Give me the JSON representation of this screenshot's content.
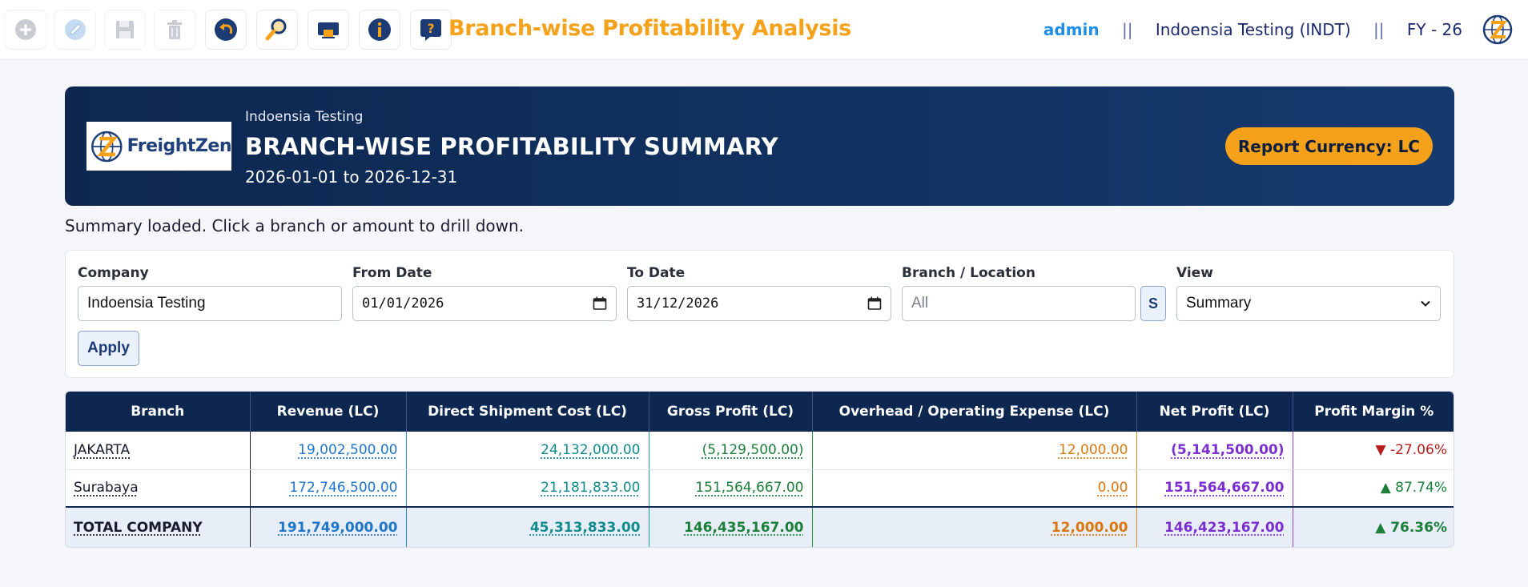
{
  "toolbar": {
    "buttons": [
      {
        "name": "add-button",
        "icon": "plus-circle-icon",
        "enabled": false
      },
      {
        "name": "edit-button",
        "icon": "pencil-icon",
        "enabled": false
      },
      {
        "name": "save-button",
        "icon": "floppy-disk-icon",
        "enabled": false
      },
      {
        "name": "delete-button",
        "icon": "trash-icon",
        "enabled": false
      },
      {
        "name": "back-button",
        "icon": "undo-arrow-icon",
        "enabled": true
      },
      {
        "name": "search-button",
        "icon": "magnifier-icon",
        "enabled": true
      },
      {
        "name": "print-button",
        "icon": "printer-icon",
        "enabled": true
      },
      {
        "name": "info-button",
        "icon": "info-icon",
        "enabled": true
      },
      {
        "name": "help-button",
        "icon": "help-question-icon",
        "enabled": true
      }
    ],
    "app_title": "Branch-wise Profitability Analysis",
    "user": "admin",
    "separator": "||",
    "company": "Indoensia Testing (INDT)",
    "fiscal_year": "FY - 26"
  },
  "banner": {
    "logo_text_a": "Freight",
    "logo_text_b": "Zen",
    "company_name": "Indoensia Testing",
    "report_title": "BRANCH-WISE PROFITABILITY SUMMARY",
    "date_range": "2026-01-01 to 2026-12-31",
    "currency_badge": "Report Currency: LC"
  },
  "status_message": "Summary loaded. Click a branch or amount to drill down.",
  "filters": {
    "company_label": "Company",
    "company_value": "Indoensia Testing",
    "from_label": "From Date",
    "from_value": "01/01/2026",
    "to_label": "To Date",
    "to_value": "31/12/2026",
    "branch_label": "Branch / Location",
    "branch_placeholder": "All",
    "s_button": "S",
    "view_label": "View",
    "view_value": "Summary",
    "apply_label": "Apply"
  },
  "table": {
    "headers": [
      "Branch",
      "Revenue (LC)",
      "Direct Shipment Cost (LC)",
      "Gross Profit (LC)",
      "Overhead / Operating Expense (LC)",
      "Net Profit (LC)",
      "Profit Margin %"
    ],
    "rows": [
      {
        "branch": "JAKARTA",
        "revenue": "19,002,500.00",
        "dsc": "24,132,000.00",
        "gross": "(5,129,500.00)",
        "overhead": "12,000.00",
        "net": "(5,141,500.00)",
        "margin": "-27.06%",
        "margin_dir": "down"
      },
      {
        "branch": "Surabaya",
        "revenue": "172,746,500.00",
        "dsc": "21,181,833.00",
        "gross": "151,564,667.00",
        "overhead": "0.00",
        "net": "151,564,667.00",
        "margin": "87.74%",
        "margin_dir": "up"
      }
    ],
    "total": {
      "branch": "TOTAL COMPANY",
      "revenue": "191,749,000.00",
      "dsc": "45,313,833.00",
      "gross": "146,435,167.00",
      "overhead": "12,000.00",
      "net": "146,423,167.00",
      "margin": "76.36%",
      "margin_dir": "up"
    }
  },
  "glyphs": {
    "arrow_up": "▲",
    "arrow_down": "▼"
  },
  "colors": {
    "accent": "#f5a11a",
    "navy": "#0d2750",
    "revenue": "#1f75c8",
    "cost": "#0f8b8d",
    "gross": "#1b7f3a",
    "overhead": "#d9770f",
    "net": "#7b2fd0",
    "negative": "#b71c1c"
  }
}
